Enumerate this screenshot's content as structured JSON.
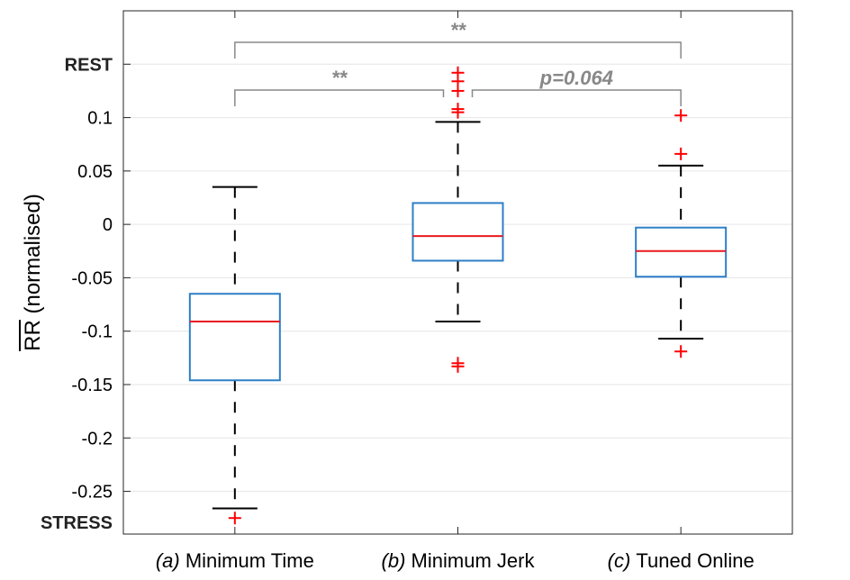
{
  "chart_data": {
    "type": "box",
    "ylabel_overline": "RR",
    "ylabel_rest": " (normalised)",
    "ylim": [
      -0.29,
      0.2
    ],
    "yticks": [
      -0.25,
      -0.2,
      -0.15,
      -0.1,
      -0.05,
      0,
      0.05,
      0.1
    ],
    "ytick_labels": [
      "-0.25",
      "-0.2",
      "-0.15",
      "-0.1",
      "-0.05",
      "0",
      "0.05",
      "0.1"
    ],
    "rest_label": "REST",
    "rest_value": 0.15,
    "stress_label": "STRESS",
    "grid": "horizontal",
    "colors": {
      "box": "#2e7fc7",
      "median": "#e8191f",
      "outlier": "#ff0000",
      "whisker": "#000000",
      "bracket": "#888888",
      "grid": "#e6e6e6"
    },
    "boxes": [
      {
        "prefix": "(a)",
        "name": "Minimum Time",
        "q1": -0.146,
        "median": -0.091,
        "q3": -0.065,
        "whisker_low": -0.266,
        "whisker_high": 0.035,
        "outliers": [
          -0.275
        ]
      },
      {
        "prefix": "(b)",
        "name": "Minimum Jerk",
        "q1": -0.034,
        "median": -0.011,
        "q3": 0.02,
        "whisker_low": -0.091,
        "whisker_high": 0.096,
        "outliers": [
          -0.13,
          -0.133,
          0.105,
          0.108,
          0.125,
          0.134,
          0.142
        ]
      },
      {
        "prefix": "(c)",
        "name": "Tuned Online",
        "q1": -0.049,
        "median": -0.025,
        "q3": -0.003,
        "whisker_low": -0.107,
        "whisker_high": 0.055,
        "outliers": [
          -0.119,
          0.066,
          0.102
        ]
      }
    ],
    "annotations": [
      {
        "from": 0,
        "to": 2,
        "text": "**"
      },
      {
        "from": 0,
        "to": 1,
        "text": "**"
      },
      {
        "from": 1,
        "to": 2,
        "text": "p=0.064"
      }
    ]
  }
}
